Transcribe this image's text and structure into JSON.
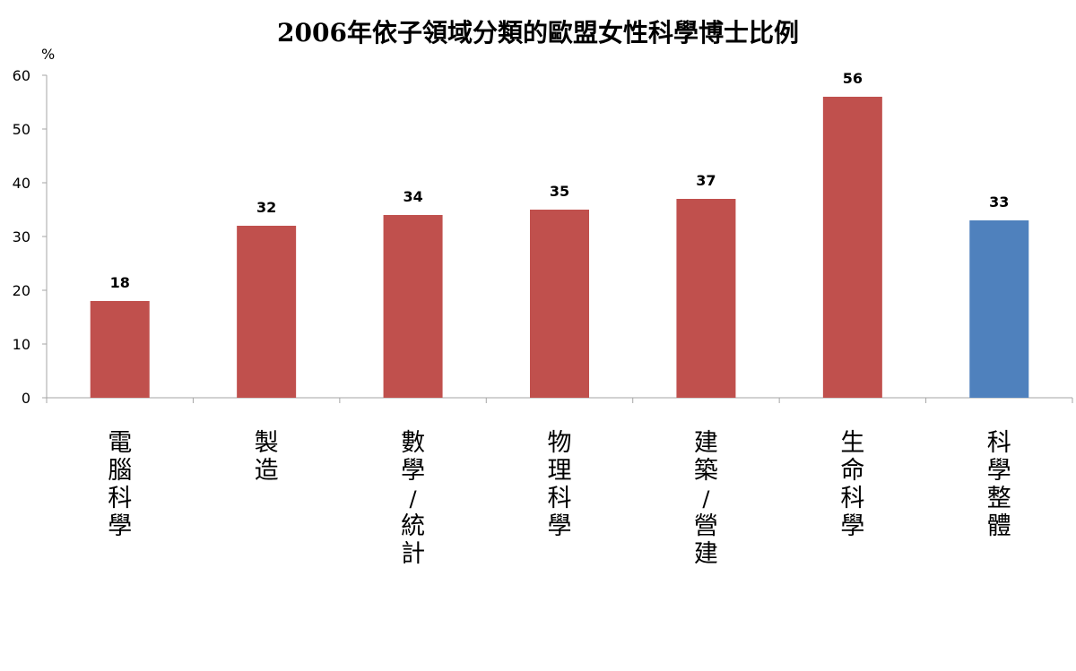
{
  "chart_data": {
    "type": "bar",
    "title": "2006年依子領域分類的歐盟女性科學博士比例",
    "ylabel": "%",
    "xlabel": "",
    "ylim": [
      0,
      60
    ],
    "yticks": [
      0,
      10,
      20,
      30,
      40,
      50,
      60
    ],
    "grid": false,
    "categories": [
      "電腦科學",
      "製造",
      "數學/統計",
      "物理科學",
      "建築/營建",
      "生命科學",
      "科學整體"
    ],
    "values": [
      18,
      32,
      34,
      35,
      37,
      56,
      33
    ],
    "bar_colors": [
      "#c0504d",
      "#c0504d",
      "#c0504d",
      "#c0504d",
      "#c0504d",
      "#c0504d",
      "#4f81bd"
    ],
    "data_labels": [
      "18",
      "32",
      "34",
      "35",
      "37",
      "56",
      "33"
    ]
  },
  "colors": {
    "axis": "#a6a6a6"
  }
}
